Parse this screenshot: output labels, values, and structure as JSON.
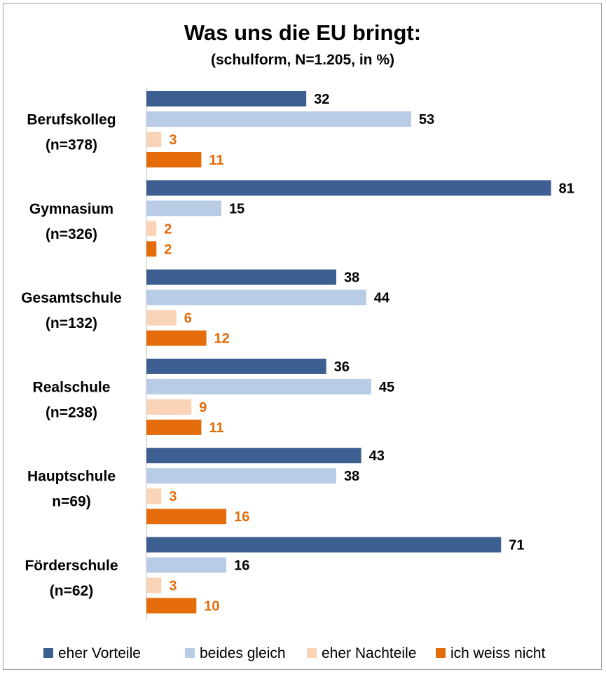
{
  "chart_data": {
    "type": "bar",
    "orientation": "horizontal",
    "title": "Was uns die EU bringt:",
    "subtitle": "(schulform, N=1.205, in %)",
    "categories": [
      [
        "Berufskolleg",
        "(n=378)"
      ],
      [
        "Gymnasium",
        "(n=326)"
      ],
      [
        "Gesamtschule",
        "(n=132)"
      ],
      [
        "Realschule",
        "(n=238)"
      ],
      [
        "Hauptschule",
        "n=69)"
      ],
      [
        "Förderschule",
        "(n=62)"
      ]
    ],
    "series": [
      {
        "name": "eher Vorteile",
        "color": "#3c5e91",
        "label_color": "#000000",
        "values": [
          32,
          81,
          38,
          36,
          43,
          71
        ]
      },
      {
        "name": "beides gleich",
        "color": "#b9cce5",
        "label_color": "#000000",
        "values": [
          53,
          15,
          44,
          45,
          38,
          16
        ]
      },
      {
        "name": "eher Nachteile",
        "color": "#fbd3b7",
        "label_color": "#e36c0a",
        "values": [
          3,
          2,
          6,
          9,
          3,
          3
        ]
      },
      {
        "name": "ich weiss nicht",
        "color": "#e46c0a",
        "label_color": "#e36c0a",
        "values": [
          11,
          2,
          12,
          11,
          16,
          10
        ]
      }
    ],
    "xlim": [
      0,
      85
    ],
    "grid": false,
    "legend_position": "bottom"
  }
}
